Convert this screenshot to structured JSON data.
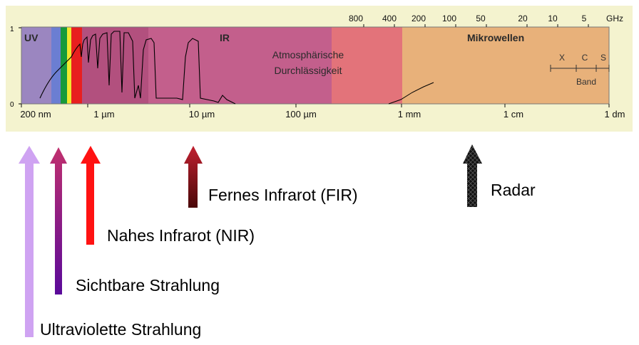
{
  "spectrum": {
    "region_labels": {
      "uv": "UV",
      "ir": "IR",
      "microwave": "Mikrowellen"
    },
    "atmosphere_label": [
      "Atmosphärische",
      "Durchlässigkeit"
    ],
    "y_ticks": [
      "1",
      "0"
    ],
    "wavelength_ticks": [
      "200 nm",
      "1 µm",
      "10 µm",
      "100 µm",
      "1 mm",
      "1 cm",
      "1 dm"
    ],
    "frequency_ticks": [
      "800",
      "400",
      "200",
      "100",
      "50",
      "20",
      "10",
      "5",
      "GHz"
    ],
    "band_letters": [
      "X",
      "C",
      "S"
    ],
    "band_label": "Band",
    "colors": {
      "panel_bg": "#f4f3cf",
      "uv": "#9b86c0",
      "blue": "#6b7ed2",
      "green": "#169a3a",
      "yellow": "#f0e830",
      "red": "#e81f1f",
      "ir_near": "#b2507e",
      "ir_mid": "#c35f8c",
      "ir_far": "#e3737a",
      "microwave": "#e8b17a"
    }
  },
  "arrows": [
    {
      "label": "Ultraviolette Strahlung",
      "color": "#cfa3f2"
    },
    {
      "label": "Sichtbare Strahlung",
      "color": "#7a1aa0"
    },
    {
      "label": "Nahes Infrarot (NIR)",
      "color": "#ff1212"
    },
    {
      "label": "Fernes Infrarot (FIR)",
      "color": "#8a0f1a"
    },
    {
      "label": "Radar",
      "color": "#111111"
    }
  ]
}
